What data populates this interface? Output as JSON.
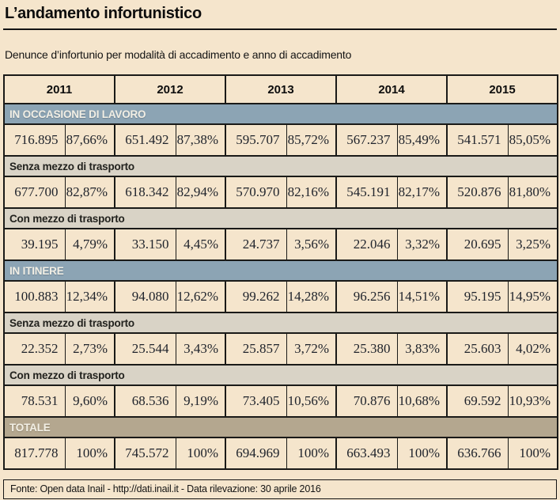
{
  "page": {
    "title": "L’andamento infortunistico",
    "subtitle": "Denunce d’infortunio per modalità di accadimento e anno di accadimento",
    "source": "Fonte: Open data Inail - http://dati.inail.it - Data rilevazione: 30 aprile 2016"
  },
  "colors": {
    "background": "#f5e5cc",
    "section_band_blue": "#8ca4b4",
    "subsection_band_gray": "#d9d3c6",
    "total_band_brown": "#b4a78f",
    "border": "#1a1a18",
    "number_text": "#20242c"
  },
  "table": {
    "years": [
      "2011",
      "2012",
      "2013",
      "2014",
      "2015"
    ],
    "rows": [
      {
        "kind": "band-blue",
        "label": "IN OCCASIONE DI LAVORO"
      },
      {
        "kind": "data",
        "v": [
          "716.895",
          "87,66%",
          "651.492",
          "87,38%",
          "595.707",
          "85,72%",
          "567.237",
          "85,49%",
          "541.571",
          "85,05%"
        ]
      },
      {
        "kind": "band-gray",
        "label": "Senza mezzo di trasporto"
      },
      {
        "kind": "data",
        "v": [
          "677.700",
          "82,87%",
          "618.342",
          "82,94%",
          "570.970",
          "82,16%",
          "545.191",
          "82,17%",
          "520.876",
          "81,80%"
        ]
      },
      {
        "kind": "band-gray",
        "label": "Con mezzo di trasporto"
      },
      {
        "kind": "data",
        "v": [
          "39.195",
          "4,79%",
          "33.150",
          "4,45%",
          "24.737",
          "3,56%",
          "22.046",
          "3,32%",
          "20.695",
          "3,25%"
        ]
      },
      {
        "kind": "band-blue",
        "label": "IN ITINERE"
      },
      {
        "kind": "data",
        "v": [
          "100.883",
          "12,34%",
          "94.080",
          "12,62%",
          "99.262",
          "14,28%",
          "96.256",
          "14,51%",
          "95.195",
          "14,95%"
        ]
      },
      {
        "kind": "band-gray",
        "label": "Senza mezzo di trasporto"
      },
      {
        "kind": "data",
        "v": [
          "22.352",
          "2,73%",
          "25.544",
          "3,43%",
          "25.857",
          "3,72%",
          "25.380",
          "3,83%",
          "25.603",
          "4,02%"
        ]
      },
      {
        "kind": "band-gray",
        "label": "Con mezzo di trasporto"
      },
      {
        "kind": "data",
        "v": [
          "78.531",
          "9,60%",
          "68.536",
          "9,19%",
          "73.405",
          "10,56%",
          "70.876",
          "10,68%",
          "69.592",
          "10,93%"
        ]
      },
      {
        "kind": "band-brown",
        "label": "TOTALE"
      },
      {
        "kind": "data",
        "v": [
          "817.778",
          "100%",
          "745.572",
          "100%",
          "694.969",
          "100%",
          "663.493",
          "100%",
          "636.766",
          "100%"
        ]
      }
    ]
  },
  "chart_data": {
    "type": "table",
    "title": "Denunce d'infortunio per modalità di accadimento e anno di accadimento",
    "years": [
      2011,
      2012,
      2013,
      2014,
      2015
    ],
    "rows": [
      {
        "label": "In occasione di lavoro",
        "counts": [
          716895,
          651492,
          595707,
          567237,
          541571
        ],
        "pct": [
          87.66,
          87.38,
          85.72,
          85.49,
          85.05
        ]
      },
      {
        "label": "In occasione di lavoro - Senza mezzo di trasporto",
        "counts": [
          677700,
          618342,
          570970,
          545191,
          520876
        ],
        "pct": [
          82.87,
          82.94,
          82.16,
          82.17,
          81.8
        ]
      },
      {
        "label": "In occasione di lavoro - Con mezzo di trasporto",
        "counts": [
          39195,
          33150,
          24737,
          22046,
          20695
        ],
        "pct": [
          4.79,
          4.45,
          3.56,
          3.32,
          3.25
        ]
      },
      {
        "label": "In itinere",
        "counts": [
          100883,
          94080,
          99262,
          96256,
          95195
        ],
        "pct": [
          12.34,
          12.62,
          14.28,
          14.51,
          14.95
        ]
      },
      {
        "label": "In itinere - Senza mezzo di trasporto",
        "counts": [
          22352,
          25544,
          25857,
          25380,
          25603
        ],
        "pct": [
          2.73,
          3.43,
          3.72,
          3.83,
          4.02
        ]
      },
      {
        "label": "In itinere - Con mezzo di trasporto",
        "counts": [
          78531,
          68536,
          73405,
          70876,
          69592
        ],
        "pct": [
          9.6,
          9.19,
          10.56,
          10.68,
          10.93
        ]
      },
      {
        "label": "Totale",
        "counts": [
          817778,
          745572,
          694969,
          663493,
          636766
        ],
        "pct": [
          100,
          100,
          100,
          100,
          100
        ]
      }
    ]
  }
}
